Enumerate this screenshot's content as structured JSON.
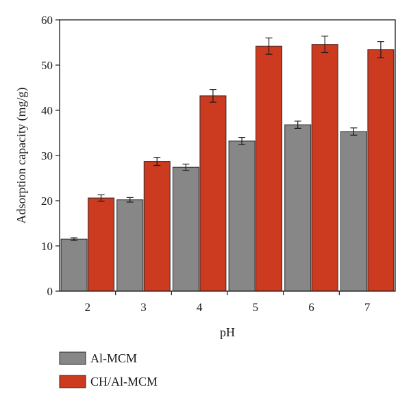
{
  "chart_data": {
    "type": "bar",
    "xlabel": "pH",
    "ylabel": "Adsorption capacity (mg/g)",
    "ylim": [
      0,
      60
    ],
    "yticks": [
      0,
      10,
      20,
      30,
      40,
      50,
      60
    ],
    "categories": [
      "2",
      "3",
      "4",
      "5",
      "6",
      "7"
    ],
    "series": [
      {
        "name": "Al-MCM",
        "color": "#878787",
        "values": [
          11.5,
          20.2,
          27.4,
          33.2,
          36.8,
          35.3
        ],
        "errors": [
          0.3,
          0.5,
          0.7,
          0.8,
          0.8,
          0.8
        ]
      },
      {
        "name": "CH/Al-MCM",
        "color": "#cc3a1f",
        "values": [
          20.6,
          28.7,
          43.2,
          54.2,
          54.6,
          53.4
        ],
        "errors": [
          0.7,
          0.9,
          1.4,
          1.8,
          1.8,
          1.8
        ]
      }
    ],
    "legend_position": "bottom-left",
    "grid": false
  }
}
